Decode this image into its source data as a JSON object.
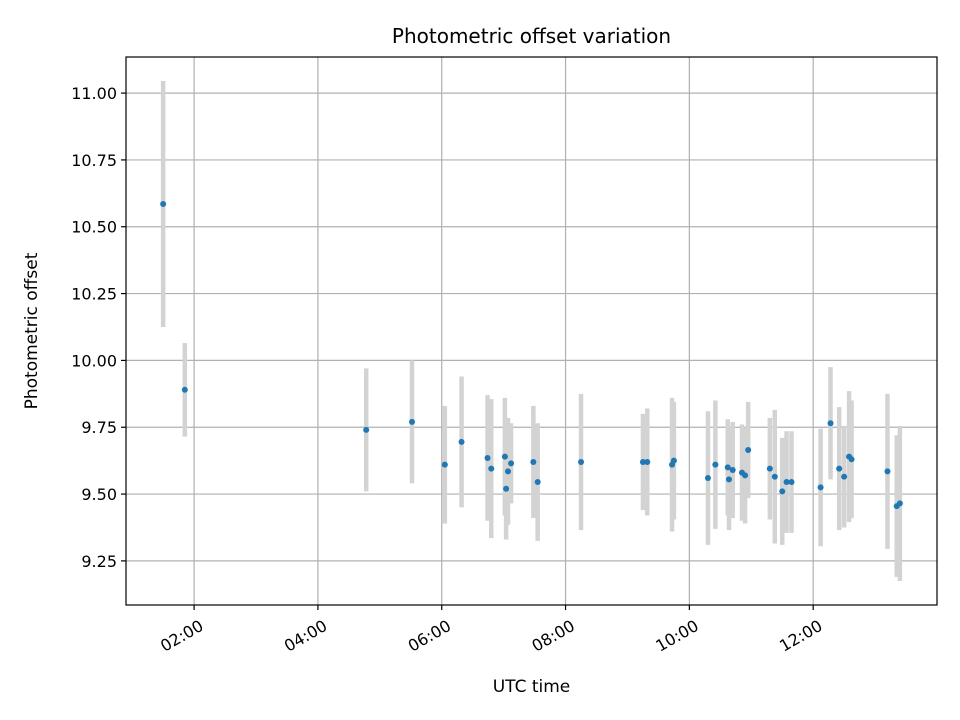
{
  "chart_data": {
    "type": "scatter",
    "title": "Photometric offset variation",
    "xlabel": "UTC time",
    "ylabel": "Photometric offset",
    "xlim": [
      0.9,
      14.0
    ],
    "ylim": [
      9.085,
      11.135
    ],
    "x_ticks": [
      2,
      4,
      6,
      8,
      10,
      12
    ],
    "x_tick_labels": [
      "02:00",
      "04:00",
      "06:00",
      "08:00",
      "10:00",
      "12:00"
    ],
    "y_ticks": [
      9.25,
      9.5,
      9.75,
      10.0,
      10.25,
      10.5,
      10.75,
      11.0
    ],
    "y_tick_labels": [
      "9.25",
      "9.50",
      "9.75",
      "10.00",
      "10.25",
      "10.50",
      "10.75",
      "11.00"
    ],
    "grid": true,
    "colors": {
      "point": "#1f77b4",
      "error_bar": "#d3d3d3",
      "grid": "#b0b0b0"
    },
    "series": [
      {
        "name": "offset",
        "x": [
          1.5,
          1.85,
          4.78,
          5.52,
          6.05,
          6.32,
          6.74,
          6.8,
          7.02,
          7.04,
          7.07,
          7.12,
          7.48,
          7.55,
          8.25,
          9.25,
          9.32,
          9.72,
          9.75,
          10.3,
          10.42,
          10.62,
          10.64,
          10.7,
          10.85,
          10.9,
          10.95,
          11.3,
          11.38,
          11.5,
          11.57,
          11.65,
          12.12,
          12.28,
          12.42,
          12.5,
          12.58,
          12.62,
          13.2,
          13.35,
          13.4
        ],
        "y": [
          10.585,
          9.89,
          9.74,
          9.77,
          9.61,
          9.695,
          9.635,
          9.595,
          9.64,
          9.52,
          9.585,
          9.615,
          9.62,
          9.545,
          9.62,
          9.62,
          9.62,
          9.61,
          9.625,
          9.56,
          9.61,
          9.6,
          9.555,
          9.59,
          9.58,
          9.57,
          9.665,
          9.595,
          9.565,
          9.51,
          9.545,
          9.545,
          9.525,
          9.765,
          9.595,
          9.565,
          9.64,
          9.63,
          9.585,
          9.455,
          9.465
        ],
        "err": [
          0.46,
          0.175,
          0.23,
          0.23,
          0.22,
          0.245,
          0.235,
          0.26,
          0.22,
          0.19,
          0.2,
          0.15,
          0.21,
          0.22,
          0.255,
          0.18,
          0.2,
          0.25,
          0.22,
          0.25,
          0.24,
          0.18,
          0.19,
          0.18,
          0.18,
          0.18,
          0.18,
          0.19,
          0.25,
          0.2,
          0.19,
          0.19,
          0.22,
          0.21,
          0.23,
          0.19,
          0.245,
          0.22,
          0.29,
          0.265,
          0.29
        ]
      }
    ]
  }
}
